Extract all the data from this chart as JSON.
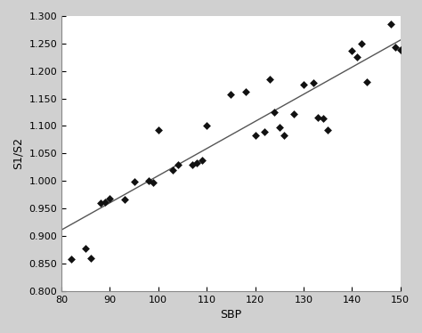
{
  "scatter_x": [
    82,
    85,
    86,
    88,
    89,
    90,
    93,
    95,
    98,
    99,
    100,
    103,
    104,
    107,
    108,
    109,
    110,
    115,
    118,
    120,
    122,
    123,
    124,
    125,
    126,
    128,
    130,
    132,
    133,
    134,
    135,
    140,
    141,
    142,
    143,
    148,
    149,
    150
  ],
  "scatter_y": [
    0.858,
    0.878,
    0.86,
    0.96,
    0.962,
    0.968,
    0.967,
    0.999,
    1.0,
    0.997,
    1.093,
    1.02,
    1.03,
    1.029,
    1.032,
    1.037,
    1.1,
    1.158,
    1.162,
    1.083,
    1.09,
    1.185,
    1.125,
    1.097,
    1.083,
    1.122,
    1.175,
    1.178,
    1.115,
    1.113,
    1.092,
    1.236,
    1.226,
    1.25,
    1.18,
    1.285,
    1.243,
    1.238
  ],
  "xlim": [
    80,
    150
  ],
  "ylim": [
    0.8,
    1.3
  ],
  "xticks": [
    80,
    90,
    100,
    110,
    120,
    130,
    140,
    150
  ],
  "yticks": [
    0.8,
    0.85,
    0.9,
    0.95,
    1.0,
    1.05,
    1.1,
    1.15,
    1.2,
    1.25,
    1.3
  ],
  "xlabel": "SBP",
  "ylabel": "S1/S2",
  "regression_x0": 80,
  "regression_x1": 150,
  "regression_slope": 0.00493,
  "regression_intercept": 0.5165,
  "marker_color": "#111111",
  "line_color": "#555555",
  "outer_bg_color": "#d0d0d0",
  "plot_bg_color": "#ffffff",
  "marker_size": 4.5,
  "line_width": 1.0,
  "xlabel_fontsize": 9,
  "ylabel_fontsize": 9,
  "tick_fontsize": 8
}
